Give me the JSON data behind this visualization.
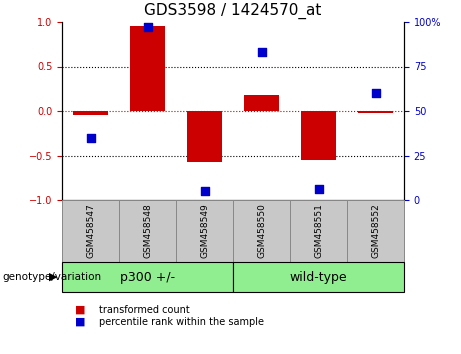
{
  "title": "GDS3598 / 1424570_at",
  "samples": [
    "GSM458547",
    "GSM458548",
    "GSM458549",
    "GSM458550",
    "GSM458551",
    "GSM458552"
  ],
  "bar_values": [
    -0.04,
    0.95,
    -0.57,
    0.18,
    -0.55,
    -0.02
  ],
  "dot_values_pct": [
    35,
    97,
    5,
    83,
    6,
    60
  ],
  "groups": [
    {
      "label": "p300 +/-",
      "span": [
        0,
        2
      ]
    },
    {
      "label": "wild-type",
      "span": [
        3,
        5
      ]
    }
  ],
  "bar_color": "#CC0000",
  "dot_color": "#0000CC",
  "ylim": [
    -1.0,
    1.0
  ],
  "yticks_left": [
    -1,
    -0.5,
    0,
    0.5,
    1
  ],
  "yticks_right": [
    0,
    25,
    50,
    75,
    100
  ],
  "dotted_lines": [
    -0.5,
    0.5
  ],
  "bar_width": 0.6,
  "dot_size": 40,
  "legend_items": [
    "transformed count",
    "percentile rank within the sample"
  ],
  "genotype_label": "genotype/variation",
  "title_fontsize": 11,
  "tick_fontsize": 7,
  "sample_box_color": "#C8C8C8",
  "group_box_color": "#90EE90"
}
